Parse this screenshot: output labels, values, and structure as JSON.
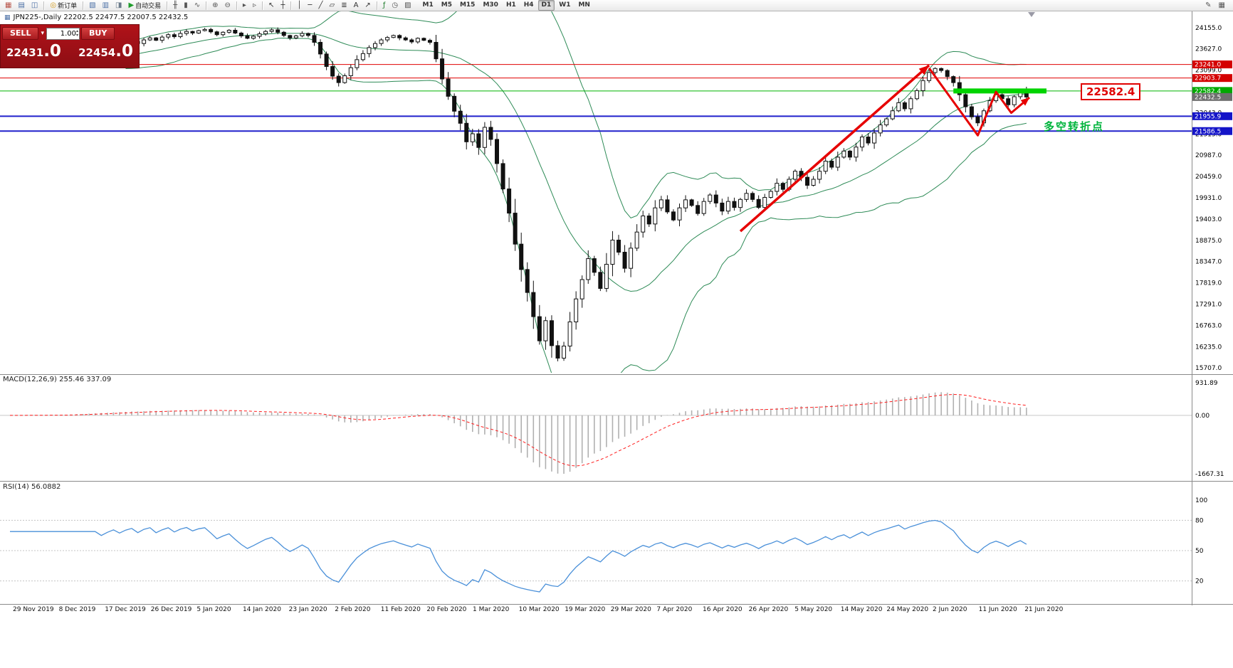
{
  "toolbar": {
    "items": [
      {
        "name": "new-chart-icon",
        "glyph": "▦",
        "color": "#b8554a"
      },
      {
        "name": "chart-profiles-icon",
        "glyph": "▤",
        "color": "#4a6fa5"
      },
      {
        "name": "market-watch-icon",
        "glyph": "◫",
        "color": "#4a6fa5"
      },
      {
        "sep": true
      },
      {
        "name": "new-order-button",
        "glyph": "◎",
        "color": "#d49a1a",
        "label": "新订单"
      },
      {
        "sep": true
      },
      {
        "name": "navigator-icon",
        "glyph": "▧",
        "color": "#4a6fa5"
      },
      {
        "name": "terminal-icon",
        "glyph": "▥",
        "color": "#4a6fa5"
      },
      {
        "name": "strategy-tester-icon",
        "glyph": "◨",
        "color": "#6a7a8a"
      },
      {
        "name": "autotrading-button",
        "glyph": "▶",
        "color": "#1f9d2c",
        "label": "自动交易"
      },
      {
        "sep": true
      },
      {
        "name": "bar-chart-icon",
        "glyph": "╫",
        "color": "#555555"
      },
      {
        "name": "candlestick-chart-icon",
        "glyph": "▮",
        "color": "#555555"
      },
      {
        "name": "line-chart-icon",
        "glyph": "∿",
        "color": "#555555"
      },
      {
        "sep": true
      },
      {
        "name": "zoom-in-icon",
        "glyph": "⊕",
        "color": "#555555"
      },
      {
        "name": "zoom-out-icon",
        "glyph": "⊖",
        "color": "#555555"
      },
      {
        "sep": true
      },
      {
        "name": "auto-scroll-icon",
        "glyph": "▸",
        "color": "#555555"
      },
      {
        "name": "chart-shift-icon",
        "glyph": "▹",
        "color": "#555555"
      },
      {
        "sep": true
      },
      {
        "name": "cursor-icon",
        "glyph": "↖",
        "color": "#333333"
      },
      {
        "name": "crosshair-icon",
        "glyph": "┼",
        "color": "#333333"
      },
      {
        "sep": true
      },
      {
        "name": "vertical-line-icon",
        "glyph": "│",
        "color": "#333333"
      },
      {
        "name": "horizontal-line-icon",
        "glyph": "─",
        "color": "#333333"
      },
      {
        "name": "trendline-icon",
        "glyph": "╱",
        "color": "#333333"
      },
      {
        "name": "equidistant-channel-icon",
        "glyph": "▱",
        "color": "#333333"
      },
      {
        "name": "fibonacci-icon",
        "glyph": "≣",
        "color": "#333333"
      },
      {
        "name": "text-label-icon",
        "glyph": "A",
        "color": "#333333"
      },
      {
        "name": "arrows-tool-icon",
        "glyph": "↗",
        "color": "#333333"
      },
      {
        "sep": true
      },
      {
        "name": "indicators-icon",
        "glyph": "ƒ",
        "color": "#1f7d2c"
      },
      {
        "name": "periods-icon",
        "glyph": "◷",
        "color": "#555555"
      },
      {
        "name": "templates-icon",
        "glyph": "▨",
        "color": "#555555"
      }
    ],
    "timeframes": [
      "M1",
      "M5",
      "M15",
      "M30",
      "H1",
      "H4",
      "D1",
      "W1",
      "MN"
    ],
    "active_timeframe": "D1",
    "right_icons": [
      {
        "name": "edit-chart-icon",
        "glyph": "✎",
        "color": "#555555"
      },
      {
        "name": "window-list-icon",
        "glyph": "▦",
        "color": "#555555"
      }
    ]
  },
  "symbol_header": {
    "icon": "▦",
    "text": "JPN225-,Daily 22202.5 22477.5 22007.5 22432.5"
  },
  "trade_panel": {
    "sell_label": "SELL",
    "buy_label": "BUY",
    "caret_icon": "▾",
    "volume": "1.00",
    "spin_up": "▴",
    "spin_down": "▾",
    "sell_price_int": "22431",
    "sell_price_frac": ".0",
    "buy_price_int": "22454",
    "buy_price_frac": ".0"
  },
  "annotations": {
    "price_label": "22582.4",
    "turning_point": "多空转折点"
  },
  "chart_data": {
    "type": "candlestick",
    "symbol": "JPN225-",
    "timeframe": "Daily",
    "ohlc_header": {
      "open": "22202.5",
      "high": "22477.5",
      "low": "22007.5",
      "close": "22432.5"
    },
    "closes": [
      23280,
      23330,
      23250,
      23310,
      23380,
      23320,
      23270,
      23340,
      23300,
      23380,
      23450,
      23520,
      23470,
      23560,
      23620,
      23570,
      23650,
      23720,
      23680,
      23760,
      23810,
      23760,
      23850,
      23900,
      23840,
      23920,
      23980,
      23930,
      24010,
      24060,
      24020,
      24080,
      24110,
      24050,
      23980,
      24040,
      24090,
      24020,
      23950,
      23890,
      23940,
      24000,
      24060,
      24100,
      24040,
      23960,
      23900,
      23950,
      24010,
      23960,
      23790,
      23500,
      23190,
      22950,
      22790,
      22960,
      23160,
      23360,
      23510,
      23660,
      23760,
      23850,
      23910,
      23960,
      23900,
      23850,
      23800,
      23890,
      23840,
      23790,
      23380,
      22880,
      22450,
      22080,
      21780,
      21320,
      21520,
      21180,
      21680,
      21380,
      20780,
      20150,
      19550,
      18780,
      18150,
      17580,
      16980,
      16380,
      16880,
      16260,
      15950,
      16250,
      16850,
      17420,
      17900,
      18420,
      18080,
      17680,
      18280,
      18880,
      18580,
      18180,
      18680,
      19080,
      19480,
      19280,
      19680,
      19880,
      19580,
      19380,
      19680,
      19880,
      19740,
      19540,
      19840,
      20000,
      19800,
      19600,
      19840,
      19690,
      19890,
      20040,
      19890,
      19690,
      19940,
      20090,
      20290,
      20140,
      20390,
      20590,
      20440,
      20240,
      20390,
      20590,
      20840,
      20690,
      20940,
      21090,
      20940,
      21190,
      21440,
      21290,
      21540,
      21740,
      21890,
      22090,
      22290,
      22140,
      22390,
      22590,
      22840,
      23040,
      23140,
      23090,
      22940,
      22790,
      22490,
      22190,
      21940,
      21790,
      22090,
      22340,
      22490,
      22390,
      22240,
      22440,
      22590,
      22432.5
    ],
    "x_labels": [
      "29 Nov 2019",
      "8 Dec 2019",
      "17 Dec 2019",
      "26 Dec 2019",
      "5 Jan 2020",
      "14 Jan 2020",
      "23 Jan 2020",
      "2 Feb 2020",
      "11 Feb 2020",
      "20 Feb 2020",
      "1 Mar 2020",
      "10 Mar 2020",
      "19 Mar 2020",
      "29 Mar 2020",
      "7 Apr 2020",
      "16 Apr 2020",
      "26 Apr 2020",
      "5 May 2020",
      "14 May 2020",
      "24 May 2020",
      "2 Jun 2020",
      "11 Jun 2020",
      "21 Jun 2020"
    ],
    "y_ticks": [
      24155,
      23627,
      23099,
      22571,
      22043,
      21515,
      20987,
      20459,
      19931,
      19403,
      18875,
      18347,
      17819,
      17291,
      16763,
      16235,
      15707
    ],
    "hlines": [
      {
        "label": "23241.0",
        "price": 23241.0,
        "color": "#e00000",
        "tag": "#d40000",
        "width": 1
      },
      {
        "label": "22903.7",
        "price": 22903.7,
        "color": "#e00000",
        "tag": "#d40000",
        "width": 1
      },
      {
        "label": "22582.4",
        "price": 22582.4,
        "color": "#00b400",
        "tag": "#00a800",
        "width": 1
      },
      {
        "label": "21955.9",
        "price": 21955.9,
        "color": "#2020cc",
        "tag": "#1414c8",
        "width": 2
      },
      {
        "label": "21586.5",
        "price": 21586.5,
        "color": "#2020cc",
        "tag": "#1414c8",
        "width": 2
      }
    ],
    "current_price": {
      "label": "22432.5",
      "price": 22432.5,
      "tag": "#6e6e6e"
    },
    "bollinger": {
      "period": 20,
      "deviation": 2,
      "color": "#2e8b57"
    },
    "green_zone": {
      "price": 22582.4,
      "from_bar": 155,
      "to_x": 1470,
      "thickness": 7,
      "color": "#00d400"
    },
    "trend_arrow": {
      "from": [
        120,
        19100
      ],
      "to": [
        151,
        23220
      ],
      "color": "#e60000"
    },
    "zigzag": {
      "points": [
        [
          151,
          23150
        ],
        [
          159,
          21480
        ],
        [
          162,
          22560
        ],
        [
          164.5,
          22040
        ],
        [
          167.5,
          22420
        ]
      ],
      "color": "#e60000"
    },
    "indicators": {
      "macd": {
        "label": "MACD(12,26,9) 255.46 337.09",
        "ticks": [
          {
            "label": "931.89",
            "value": 931.89
          },
          {
            "label": "0.00",
            "value": 0
          },
          {
            "label": "-1667.31",
            "value": -1667.31
          }
        ],
        "scale_min": -1667.31,
        "histogram_color": "#b0b0b0",
        "signal_color": "#ff1e1e"
      },
      "rsi": {
        "label": "RSI(14) 56.0882",
        "period": 14,
        "ticks": [
          {
            "label": "100",
            "value": 100
          },
          {
            "label": "80",
            "value": 80
          },
          {
            "label": "50",
            "value": 50
          },
          {
            "label": "20",
            "value": 20
          }
        ],
        "levels": [
          80,
          50,
          20
        ],
        "line_color": "#4a90d9"
      }
    }
  }
}
